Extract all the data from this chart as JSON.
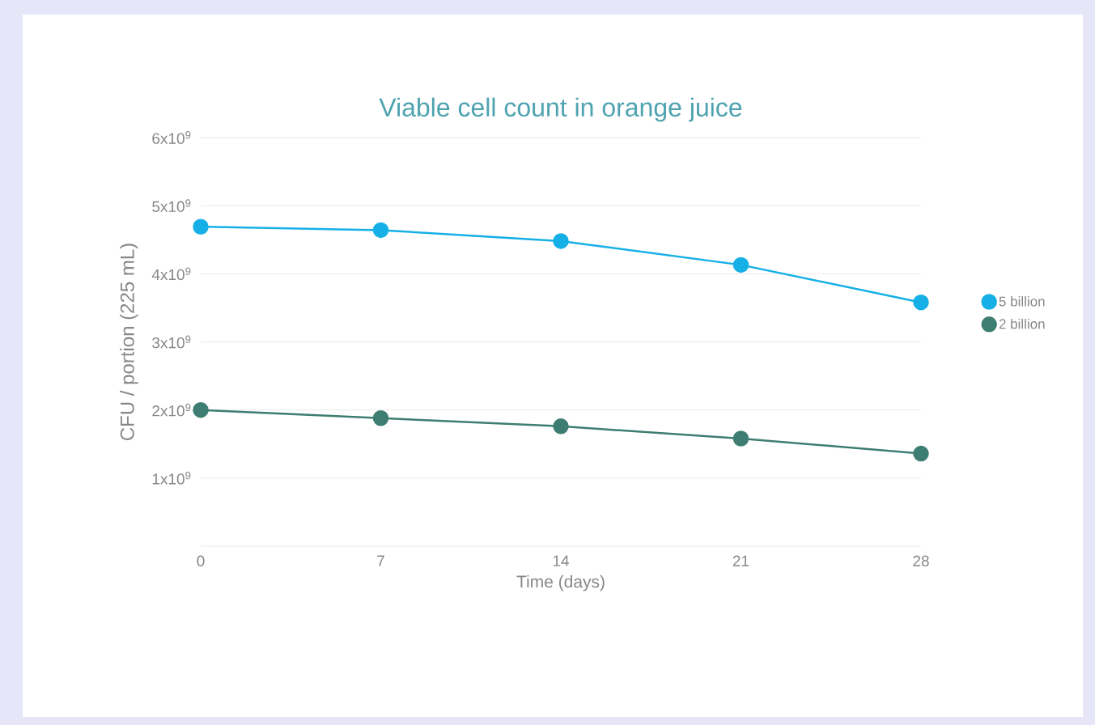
{
  "chart_data": {
    "type": "line",
    "title": "Viable cell count in orange juice",
    "xlabel": "Time (days)",
    "ylabel": "CFU / portion (225 mL)",
    "x": [
      0,
      7,
      14,
      21,
      28
    ],
    "series": [
      {
        "name": "5 billion",
        "color": "#16b0e6",
        "values": [
          4690000000,
          4640000000,
          4480000000,
          4130000000,
          3580000000
        ]
      },
      {
        "name": "2 billion",
        "color": "#3e7d72",
        "values": [
          2000000000,
          1880000000,
          1760000000,
          1580000000,
          1360000000
        ]
      }
    ],
    "xlim": [
      0,
      28
    ],
    "xticks": [
      0,
      7,
      14,
      21,
      28
    ],
    "ylim": [
      0,
      6000000000
    ],
    "yticks": [
      {
        "value": 0,
        "label": null
      },
      {
        "value": 1000000000,
        "label": "1x10$^{9}$"
      },
      {
        "value": 2000000000,
        "label": "2x10$^{9}$"
      },
      {
        "value": 3000000000,
        "label": "3x10$^{9}$"
      },
      {
        "value": 4000000000,
        "label": "4x10$^{9}$"
      },
      {
        "value": 5000000000,
        "label": "5x10$^{9}$"
      },
      {
        "value": 6000000000,
        "label": "6x10$^{9}$"
      }
    ],
    "grid": "y",
    "legend": "right",
    "marker": "circle",
    "line_style": "solid"
  }
}
